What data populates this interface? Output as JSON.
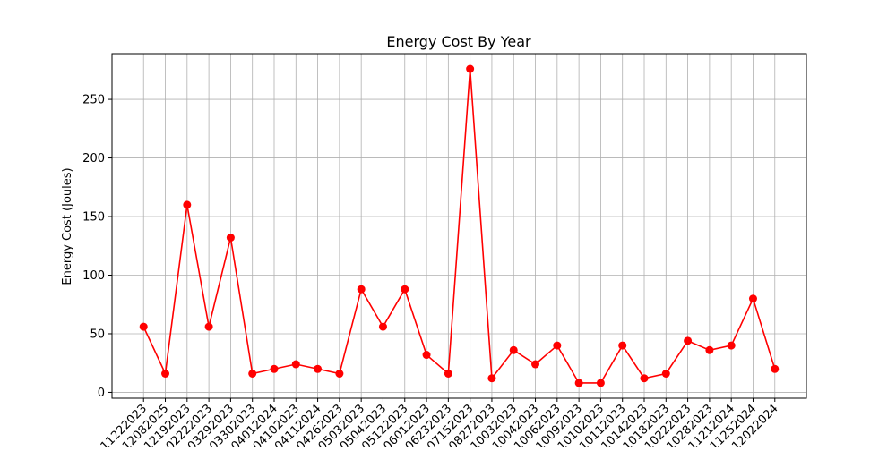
{
  "chart_data": {
    "type": "line",
    "title": "Energy Cost By Year",
    "xlabel": "",
    "ylabel": "Energy Cost (Joules)",
    "ylim": [
      -5,
      289
    ],
    "y_ticks": [
      0,
      50,
      100,
      150,
      200,
      250
    ],
    "grid": true,
    "line_color": "#ff0000",
    "marker": "circle",
    "categories": [
      "11222023",
      "12082025",
      "12192023",
      "02222023",
      "03292023",
      "03302023",
      "04012024",
      "04102023",
      "04112024",
      "04262023",
      "05032023",
      "05042023",
      "05122023",
      "06012023",
      "06232023",
      "07152023",
      "08272023",
      "10032023",
      "10042023",
      "10062023",
      "10092023",
      "10102023",
      "10112023",
      "10142023",
      "10182023",
      "10222023",
      "10282023",
      "11212024",
      "11252024",
      "12022024"
    ],
    "series": [
      {
        "values": [
          56,
          16,
          160,
          56,
          132,
          16,
          20,
          24,
          20,
          16,
          88,
          56,
          88,
          32,
          16,
          276,
          12,
          36,
          24,
          40,
          8,
          8,
          40,
          12,
          16,
          44,
          36,
          40,
          80,
          20
        ]
      }
    ]
  }
}
